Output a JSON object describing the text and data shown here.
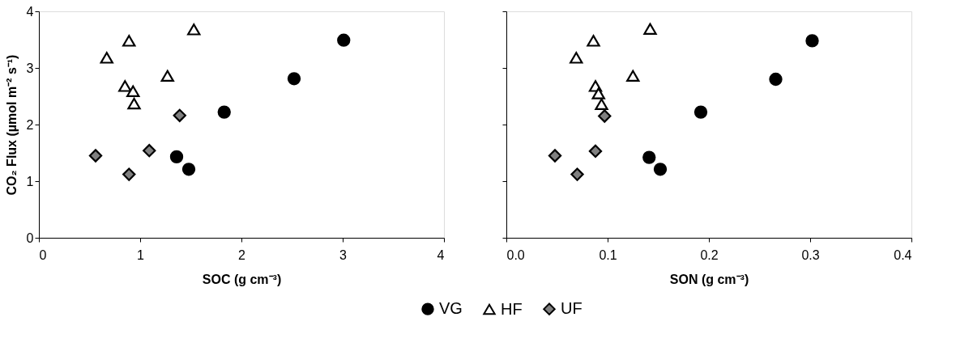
{
  "chart_data": [
    {
      "type": "scatter",
      "xlabel": "SOC (g cm⁻³)",
      "ylabel": "CO₂ Flux (µmol m⁻² s⁻¹)",
      "xlim": [
        0,
        4
      ],
      "ylim": [
        0,
        4
      ],
      "xticks": [
        0,
        1,
        2,
        3,
        4
      ],
      "yticks": [
        0,
        1,
        2,
        3,
        4
      ],
      "grid": false,
      "legend": "bottom",
      "series": [
        {
          "name": "VG",
          "color": "#000000",
          "marker": "circle",
          "x": [
            1.36,
            1.48,
            1.83,
            2.52,
            3.01
          ],
          "values": [
            1.43,
            1.21,
            2.22,
            2.81,
            3.49
          ]
        },
        {
          "name": "HF",
          "color": "#ffffff",
          "marker": "triangle",
          "x": [
            0.67,
            0.89,
            1.53,
            1.27,
            0.85,
            0.93,
            0.94
          ],
          "values": [
            3.18,
            3.48,
            3.68,
            2.86,
            2.68,
            2.59,
            2.37
          ]
        },
        {
          "name": "UF",
          "color": "#808080",
          "marker": "diamond",
          "x": [
            0.56,
            0.89,
            1.09,
            1.39
          ],
          "values": [
            1.45,
            1.12,
            1.54,
            2.16
          ]
        }
      ]
    },
    {
      "type": "scatter",
      "xlabel": "SON (g cm⁻³)",
      "xlim": [
        0,
        0.4
      ],
      "ylim": [
        0,
        4
      ],
      "xticks": [
        {
          "value": 0,
          "label": "0.0"
        },
        0.1,
        0.2,
        0.3,
        0.4
      ],
      "yticks": [
        0,
        1,
        2,
        3,
        4
      ],
      "grid": false,
      "legend": "bottom",
      "tick_labels": "x",
      "series": [
        {
          "name": "VG",
          "color": "#000000",
          "marker": "circle",
          "x": [
            0.141,
            0.152,
            0.192,
            0.266,
            0.302
          ],
          "values": [
            1.42,
            1.21,
            2.22,
            2.8,
            3.48
          ]
        },
        {
          "name": "HF",
          "color": "#ffffff",
          "marker": "triangle",
          "x": [
            0.069,
            0.086,
            0.142,
            0.125,
            0.088,
            0.091,
            0.094
          ],
          "values": [
            3.18,
            3.48,
            3.69,
            2.86,
            2.68,
            2.55,
            2.36
          ]
        },
        {
          "name": "UF",
          "color": "#808080",
          "marker": "diamond",
          "x": [
            0.048,
            0.07,
            0.088,
            0.097
          ],
          "values": [
            1.45,
            1.12,
            1.53,
            2.15
          ]
        }
      ]
    }
  ]
}
